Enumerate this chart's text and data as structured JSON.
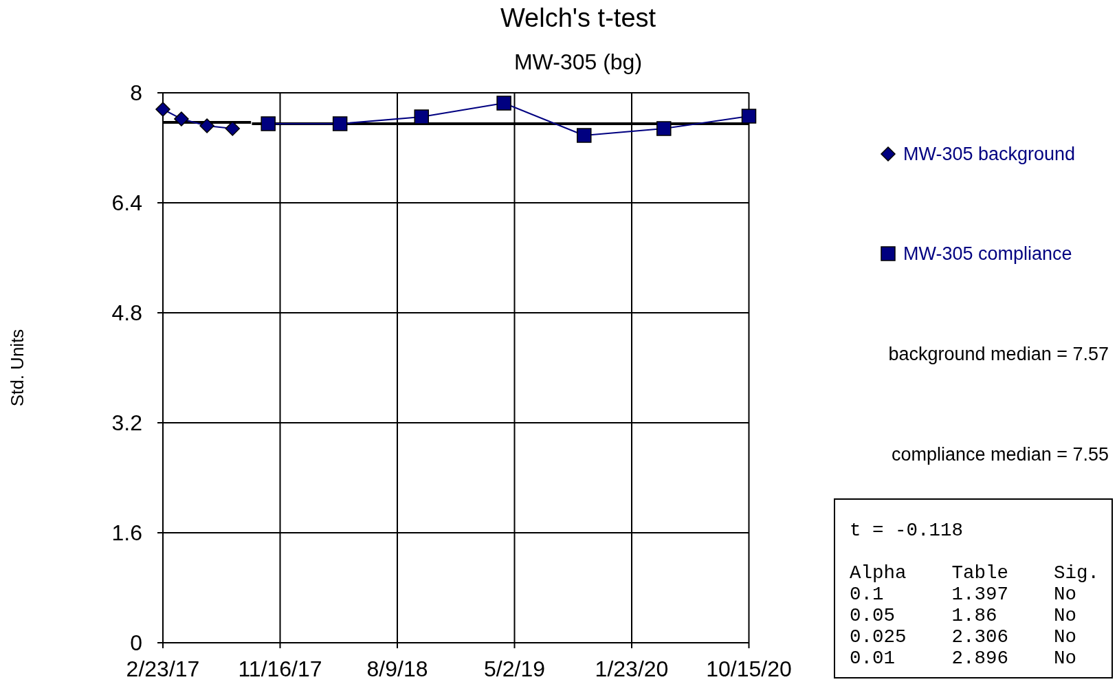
{
  "chart_data": {
    "type": "line",
    "title": "Welch's t-test",
    "subtitle": "MW-305 (bg)",
    "ylabel": "Std. Units",
    "xlim": [
      "2017-02-23",
      "2020-10-15"
    ],
    "xticks": [
      {
        "value": "2017-02-23",
        "label": "2/23/17"
      },
      {
        "value": "2017-11-16",
        "label": "11/16/17"
      },
      {
        "value": "2018-08-09",
        "label": "8/9/18"
      },
      {
        "value": "2019-05-02",
        "label": "5/2/19"
      },
      {
        "value": "2020-01-23",
        "label": "1/23/20"
      },
      {
        "value": "2020-10-15",
        "label": "10/15/20"
      }
    ],
    "ylim": [
      0,
      8
    ],
    "yticks": [
      0,
      1.6,
      3.2,
      4.8,
      6.4,
      8
    ],
    "grid": true,
    "legend": "right",
    "series": [
      {
        "type": "line",
        "color": "#000000",
        "marker": "none",
        "x": [
          "2017-02-23",
          "2017-09-11"
        ],
        "values": [
          7.57,
          7.57
        ]
      },
      {
        "type": "line",
        "color": "#000000",
        "marker": "none",
        "x": [
          "2017-09-13",
          "2020-10-15"
        ],
        "values": [
          7.55,
          7.55
        ]
      },
      {
        "name": "MW-305 background",
        "type": "line",
        "color": "#000080",
        "marker": "diamond",
        "x": [
          "2017-02-23",
          "2017-04-06",
          "2017-06-03",
          "2017-07-31"
        ],
        "values": [
          7.76,
          7.62,
          7.52,
          7.48
        ]
      },
      {
        "name": "MW-305 compliance",
        "type": "line",
        "color": "#000080",
        "marker": "square",
        "x": [
          "2017-10-20",
          "2018-04-01",
          "2018-10-03",
          "2019-04-08",
          "2019-10-07",
          "2020-04-05",
          "2020-10-15"
        ],
        "values": [
          7.55,
          7.55,
          7.65,
          7.85,
          7.38,
          7.48,
          7.66
        ]
      }
    ],
    "annotations": [
      "background median = 7.57",
      "compliance median = 7.55",
      "t = -0.118",
      "Alpha    Table    Sig.",
      "0.1      1.397    No",
      "0.05     1.86     No",
      "0.025    2.306    No",
      "0.01     2.896    No"
    ]
  }
}
